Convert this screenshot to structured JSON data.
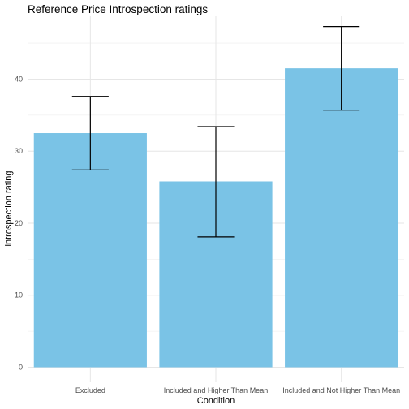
{
  "chart_data": {
    "type": "bar",
    "title": "Reference Price Introspection ratings",
    "xlabel": "Condition",
    "ylabel": "introspection rating",
    "categories": [
      "Excluded",
      "Included and Higher Than Mean",
      "Included and Not Higher Than Mean"
    ],
    "values": [
      32.5,
      25.8,
      41.5
    ],
    "error_low": [
      27.4,
      18.1,
      35.7
    ],
    "error_high": [
      37.6,
      33.4,
      47.3
    ],
    "ylim": [
      0,
      48.5
    ],
    "yticks": [
      0,
      10,
      20,
      30,
      40
    ],
    "grid": true,
    "bar_color": "#7ac3e6"
  }
}
